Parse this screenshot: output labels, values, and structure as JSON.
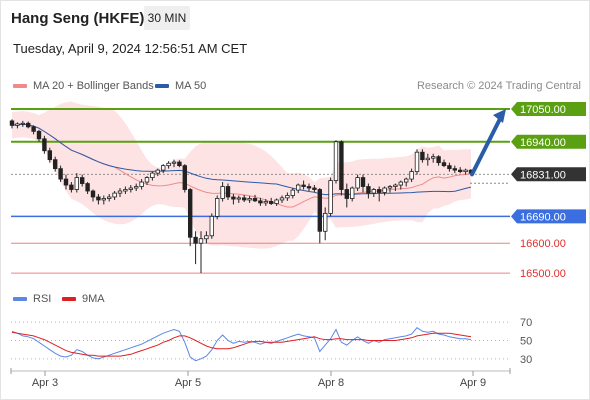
{
  "header": {
    "title": "Hang Seng (HKFE)",
    "timeframe": "30 MIN",
    "datetime": "Tuesday, April 9, 2024 12:56:51 AM CET"
  },
  "legend": {
    "ma20": "MA 20 + Bollinger Bands",
    "ma50": "MA 50",
    "credit": "Research © 2024 Trading Central",
    "rsi": "RSI",
    "ma9": "9MA"
  },
  "colors": {
    "resistance": "#5aa012",
    "support_line": "#3b6fe0",
    "support_red": "#f08080",
    "ma20": "#f08a8a",
    "ma50": "#2b5ca8",
    "bollinger_fill": "#fde0e0",
    "candle": "#222222",
    "price_tag": "#333333",
    "arrow": "#2b5ca8",
    "rsi": "#5b87e6",
    "rsi_ma": "#e02020"
  },
  "chart_data": [
    {
      "type": "candlestick",
      "title": "Hang Seng (HKFE)",
      "timeframe": "30 MIN",
      "x_ticks": [
        "Apr 3",
        "Apr 5",
        "Apr 8",
        "Apr 9"
      ],
      "ylim": [
        16460,
        17080
      ],
      "current_price": {
        "label": "16831.00",
        "value": 16831
      },
      "levels": [
        {
          "label": "17050.00",
          "value": 17050,
          "kind": "resistance"
        },
        {
          "label": "16940.00",
          "value": 16940,
          "kind": "resistance"
        },
        {
          "label": "16690.00",
          "value": 16690,
          "kind": "support"
        },
        {
          "label": "16600.00",
          "value": 16600,
          "kind": "support2"
        },
        {
          "label": "16500.00",
          "value": 16500,
          "kind": "support3"
        }
      ],
      "projection": {
        "from": 16831,
        "to": 17050,
        "direction": "up"
      },
      "series": [
        {
          "name": "MA 20 + Bollinger Bands",
          "kind": "bollinger"
        },
        {
          "name": "MA 50",
          "kind": "ma"
        }
      ],
      "candles": [
        [
          17010,
          17015,
          16985,
          16995
        ],
        [
          16995,
          17005,
          16985,
          17000
        ],
        [
          17000,
          17010,
          16990,
          17002
        ],
        [
          17002,
          17008,
          16985,
          16990
        ],
        [
          16990,
          16995,
          16965,
          16975
        ],
        [
          16975,
          16980,
          16940,
          16950
        ],
        [
          16950,
          16960,
          16900,
          16910
        ],
        [
          16910,
          16920,
          16870,
          16880
        ],
        [
          16880,
          16890,
          16840,
          16850
        ],
        [
          16850,
          16860,
          16805,
          16815
        ],
        [
          16815,
          16830,
          16780,
          16795
        ],
        [
          16795,
          16805,
          16770,
          16780
        ],
        [
          16780,
          16835,
          16770,
          16820
        ],
        [
          16820,
          16830,
          16790,
          16800
        ],
        [
          16800,
          16805,
          16765,
          16775
        ],
        [
          16775,
          16780,
          16740,
          16755
        ],
        [
          16755,
          16765,
          16730,
          16745
        ],
        [
          16745,
          16760,
          16730,
          16750
        ],
        [
          16750,
          16765,
          16740,
          16755
        ],
        [
          16755,
          16775,
          16745,
          16768
        ],
        [
          16768,
          16785,
          16755,
          16775
        ],
        [
          16775,
          16790,
          16765,
          16780
        ],
        [
          16780,
          16795,
          16770,
          16785
        ],
        [
          16785,
          16800,
          16775,
          16790
        ],
        [
          16790,
          16815,
          16780,
          16805
        ],
        [
          16805,
          16825,
          16795,
          16820
        ],
        [
          16820,
          16840,
          16810,
          16835
        ],
        [
          16835,
          16850,
          16825,
          16845
        ],
        [
          16845,
          16865,
          16835,
          16860
        ],
        [
          16860,
          16875,
          16850,
          16868
        ],
        [
          16868,
          16880,
          16855,
          16872
        ],
        [
          16872,
          16878,
          16855,
          16860
        ],
        [
          16860,
          16865,
          16770,
          16780
        ],
        [
          16780,
          16785,
          16590,
          16620
        ],
        [
          16620,
          16640,
          16530,
          16600
        ],
        [
          16600,
          16640,
          16500,
          16615
        ],
        [
          16615,
          16640,
          16600,
          16625
        ],
        [
          16625,
          16700,
          16615,
          16690
        ],
        [
          16690,
          16760,
          16680,
          16750
        ],
        [
          16750,
          16805,
          16740,
          16790
        ],
        [
          16790,
          16800,
          16745,
          16755
        ],
        [
          16755,
          16765,
          16730,
          16748
        ],
        [
          16748,
          16760,
          16735,
          16752
        ],
        [
          16752,
          16762,
          16738,
          16745
        ],
        [
          16745,
          16758,
          16735,
          16750
        ],
        [
          16750,
          16762,
          16738,
          16742
        ],
        [
          16742,
          16752,
          16725,
          16735
        ],
        [
          16735,
          16748,
          16725,
          16740
        ],
        [
          16740,
          16752,
          16728,
          16733
        ],
        [
          16733,
          16750,
          16725,
          16745
        ],
        [
          16745,
          16760,
          16735,
          16752
        ],
        [
          16752,
          16770,
          16742,
          16760
        ],
        [
          16760,
          16785,
          16750,
          16778
        ],
        [
          16778,
          16800,
          16768,
          16795
        ],
        [
          16795,
          16810,
          16780,
          16790
        ],
        [
          16790,
          16800,
          16775,
          16785
        ],
        [
          16785,
          16795,
          16770,
          16780
        ],
        [
          16780,
          16785,
          16600,
          16640
        ],
        [
          16640,
          16720,
          16610,
          16700
        ],
        [
          16700,
          16820,
          16690,
          16810
        ],
        [
          16810,
          16945,
          16800,
          16940
        ],
        [
          16940,
          16945,
          16760,
          16780
        ],
        [
          16780,
          16800,
          16720,
          16750
        ],
        [
          16750,
          16790,
          16740,
          16785
        ],
        [
          16785,
          16830,
          16775,
          16820
        ],
        [
          16820,
          16830,
          16770,
          16790
        ],
        [
          16790,
          16800,
          16750,
          16768
        ],
        [
          16768,
          16785,
          16755,
          16780
        ],
        [
          16780,
          16790,
          16740,
          16770
        ],
        [
          16770,
          16790,
          16760,
          16785
        ],
        [
          16785,
          16795,
          16770,
          16790
        ],
        [
          16790,
          16800,
          16775,
          16795
        ],
        [
          16795,
          16810,
          16780,
          16805
        ],
        [
          16805,
          16820,
          16790,
          16815
        ],
        [
          16815,
          16850,
          16805,
          16840
        ],
        [
          16840,
          16915,
          16830,
          16905
        ],
        [
          16905,
          16915,
          16870,
          16880
        ],
        [
          16880,
          16900,
          16860,
          16885
        ],
        [
          16885,
          16900,
          16870,
          16890
        ],
        [
          16890,
          16895,
          16860,
          16870
        ],
        [
          16870,
          16880,
          16855,
          16860
        ],
        [
          16860,
          16870,
          16840,
          16850
        ],
        [
          16850,
          16860,
          16835,
          16845
        ],
        [
          16845,
          16855,
          16835,
          16840
        ],
        [
          16840,
          16850,
          16830,
          16845
        ],
        [
          16845,
          16848,
          16830,
          16835
        ]
      ]
    },
    {
      "type": "line",
      "title": "RSI",
      "ylim": [
        20,
        80
      ],
      "y_ticks": [
        70,
        50,
        30
      ],
      "series": [
        {
          "name": "RSI",
          "values": [
            60,
            58,
            55,
            54,
            52,
            48,
            44,
            40,
            36,
            33,
            32,
            34,
            40,
            38,
            34,
            31,
            30,
            32,
            34,
            36,
            38,
            40,
            42,
            44,
            46,
            49,
            52,
            55,
            58,
            60,
            62,
            60,
            48,
            32,
            28,
            30,
            33,
            40,
            50,
            56,
            50,
            47,
            49,
            48,
            49,
            48,
            46,
            48,
            47,
            49,
            51,
            53,
            55,
            57,
            55,
            54,
            53,
            38,
            45,
            52,
            62,
            48,
            45,
            50,
            54,
            50,
            47,
            50,
            48,
            51,
            52,
            53,
            54,
            55,
            57,
            64,
            60,
            59,
            60,
            57,
            56,
            54,
            53,
            52,
            52,
            51
          ]
        },
        {
          "name": "9MA",
          "values": [
            59,
            58,
            57,
            56,
            55,
            53,
            51,
            48,
            45,
            42,
            39,
            37,
            36,
            35,
            34,
            34,
            33,
            33,
            33,
            33,
            33,
            34,
            35,
            37,
            39,
            41,
            43,
            45,
            48,
            50,
            53,
            55,
            55,
            53,
            50,
            47,
            44,
            42,
            41,
            41,
            41,
            42,
            44,
            46,
            48,
            49,
            49,
            48,
            48,
            48,
            48,
            49,
            50,
            51,
            52,
            53,
            54,
            52,
            51,
            51,
            52,
            52,
            51,
            51,
            51,
            51,
            50,
            50,
            50,
            50,
            50,
            50,
            51,
            52,
            53,
            55,
            56,
            57,
            58,
            58,
            58,
            58,
            57,
            56,
            55,
            54
          ]
        }
      ]
    }
  ]
}
